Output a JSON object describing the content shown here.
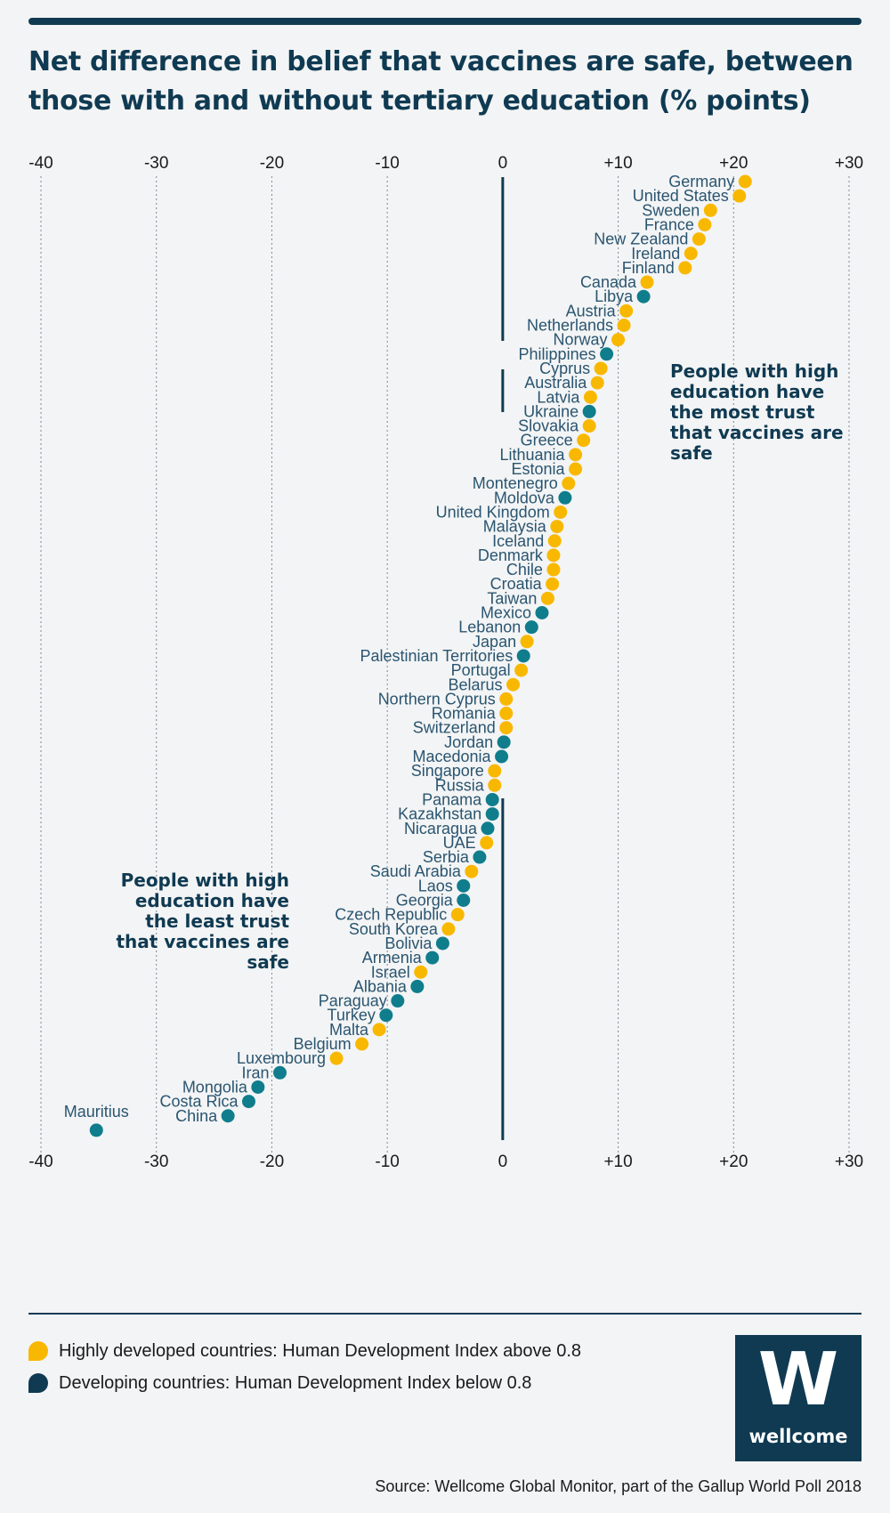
{
  "title": "Net difference in belief that vaccines are safe, between those with and without tertiary education (% points)",
  "colors": {
    "developed": "#f9b800",
    "developing": "#0f7d8c",
    "navy": "#0f3a52"
  },
  "chart_data": {
    "type": "scatter",
    "title": "Net difference in belief that vaccines are safe, between those with and without tertiary education (% points)",
    "xlim": [
      -40,
      30
    ],
    "ticks": [
      -40,
      -30,
      -20,
      -10,
      0,
      10,
      20,
      30
    ],
    "tick_labels": [
      "-40",
      "-30",
      "-20",
      "-10",
      "0",
      "+10",
      "+20",
      "+30"
    ],
    "grid": true,
    "legend": "bottom",
    "series": [
      {
        "name": "Highly developed countries: Human Development Index above 0.8",
        "group": "developed"
      },
      {
        "name": "Developing countries: Human Development Index below 0.8",
        "group": "developing"
      }
    ],
    "points": [
      {
        "country": "Germany",
        "value": 21,
        "group": "developed"
      },
      {
        "country": "United States",
        "value": 20.5,
        "group": "developed"
      },
      {
        "country": "Sweden",
        "value": 18,
        "group": "developed"
      },
      {
        "country": "France",
        "value": 17.5,
        "group": "developed"
      },
      {
        "country": "New Zealand",
        "value": 17,
        "group": "developed"
      },
      {
        "country": "Ireland",
        "value": 16.3,
        "group": "developed"
      },
      {
        "country": "Finland",
        "value": 15.8,
        "group": "developed"
      },
      {
        "country": "Canada",
        "value": 12.5,
        "group": "developed"
      },
      {
        "country": "Libya",
        "value": 12.2,
        "group": "developing"
      },
      {
        "country": "Austria",
        "value": 10.7,
        "group": "developed"
      },
      {
        "country": "Netherlands",
        "value": 10.5,
        "group": "developed"
      },
      {
        "country": "Norway",
        "value": 10,
        "group": "developed"
      },
      {
        "country": "Philippines",
        "value": 9,
        "group": "developing"
      },
      {
        "country": "Cyprus",
        "value": 8.5,
        "group": "developed"
      },
      {
        "country": "Australia",
        "value": 8.2,
        "group": "developed"
      },
      {
        "country": "Latvia",
        "value": 7.6,
        "group": "developed"
      },
      {
        "country": "Ukraine",
        "value": 7.5,
        "group": "developing"
      },
      {
        "country": "Slovakia",
        "value": 7.5,
        "group": "developed"
      },
      {
        "country": "Greece",
        "value": 7,
        "group": "developed"
      },
      {
        "country": "Lithuania",
        "value": 6.3,
        "group": "developed"
      },
      {
        "country": "Estonia",
        "value": 6.3,
        "group": "developed"
      },
      {
        "country": "Montenegro",
        "value": 5.7,
        "group": "developed"
      },
      {
        "country": "Moldova",
        "value": 5.4,
        "group": "developing"
      },
      {
        "country": "United Kingdom",
        "value": 5,
        "group": "developed"
      },
      {
        "country": "Malaysia",
        "value": 4.7,
        "group": "developed"
      },
      {
        "country": "Iceland",
        "value": 4.5,
        "group": "developed"
      },
      {
        "country": "Denmark",
        "value": 4.4,
        "group": "developed"
      },
      {
        "country": "Chile",
        "value": 4.4,
        "group": "developed"
      },
      {
        "country": "Croatia",
        "value": 4.3,
        "group": "developed"
      },
      {
        "country": "Taiwan",
        "value": 3.9,
        "group": "developed"
      },
      {
        "country": "Mexico",
        "value": 3.4,
        "group": "developing"
      },
      {
        "country": "Lebanon",
        "value": 2.5,
        "group": "developing"
      },
      {
        "country": "Japan",
        "value": 2.1,
        "group": "developed"
      },
      {
        "country": "Palestinian Territories",
        "value": 1.8,
        "group": "developing"
      },
      {
        "country": "Portugal",
        "value": 1.6,
        "group": "developed"
      },
      {
        "country": "Belarus",
        "value": 0.9,
        "group": "developed"
      },
      {
        "country": "Northern Cyprus",
        "value": 0.3,
        "group": "developed"
      },
      {
        "country": "Romania",
        "value": 0.3,
        "group": "developed"
      },
      {
        "country": "Switzerland",
        "value": 0.3,
        "group": "developed"
      },
      {
        "country": "Jordan",
        "value": 0.1,
        "group": "developing"
      },
      {
        "country": "Macedonia",
        "value": -0.1,
        "group": "developing"
      },
      {
        "country": "Singapore",
        "value": -0.7,
        "group": "developed"
      },
      {
        "country": "Russia",
        "value": -0.7,
        "group": "developed"
      },
      {
        "country": "Panama",
        "value": -0.9,
        "group": "developing"
      },
      {
        "country": "Kazakhstan",
        "value": -0.9,
        "group": "developing"
      },
      {
        "country": "Nicaragua",
        "value": -1.3,
        "group": "developing"
      },
      {
        "country": "UAE",
        "value": -1.4,
        "group": "developed"
      },
      {
        "country": "Serbia",
        "value": -2,
        "group": "developing"
      },
      {
        "country": "Saudi Arabia",
        "value": -2.7,
        "group": "developed"
      },
      {
        "country": "Laos",
        "value": -3.4,
        "group": "developing"
      },
      {
        "country": "Georgia",
        "value": -3.4,
        "group": "developing"
      },
      {
        "country": "Czech Republic",
        "value": -3.9,
        "group": "developed"
      },
      {
        "country": "South Korea",
        "value": -4.7,
        "group": "developed"
      },
      {
        "country": "Bolivia",
        "value": -5.2,
        "group": "developing"
      },
      {
        "country": "Armenia",
        "value": -6.1,
        "group": "developing"
      },
      {
        "country": "Israel",
        "value": -7.1,
        "group": "developed"
      },
      {
        "country": "Albania",
        "value": -7.4,
        "group": "developing"
      },
      {
        "country": "Paraguay",
        "value": -9.1,
        "group": "developing"
      },
      {
        "country": "Turkey",
        "value": -10.1,
        "group": "developing"
      },
      {
        "country": "Malta",
        "value": -10.7,
        "group": "developed"
      },
      {
        "country": "Belgium",
        "value": -12.2,
        "group": "developed"
      },
      {
        "country": "Luxembourg",
        "value": -14.4,
        "group": "developed"
      },
      {
        "country": "Iran",
        "value": -19.3,
        "group": "developing"
      },
      {
        "country": "Mongolia",
        "value": -21.2,
        "group": "developing"
      },
      {
        "country": "Costa Rica",
        "value": -22,
        "group": "developing"
      },
      {
        "country": "China",
        "value": -23.8,
        "group": "developing"
      },
      {
        "country": "Mauritius",
        "value": -35.2,
        "group": "developing"
      }
    ],
    "annotations": [
      {
        "text": [
          "People with high",
          "education have",
          "the most trust",
          "that vaccines are",
          "safe"
        ]
      },
      {
        "text": [
          "People with high",
          "education have",
          "the least trust",
          "that vaccines are",
          "safe"
        ]
      }
    ]
  },
  "legend": [
    {
      "label": "Highly developed countries: Human Development Index above 0.8",
      "group": "developed"
    },
    {
      "label": "Developing countries: Human Development Index below 0.8",
      "group": "developing"
    }
  ],
  "logo": {
    "letter": "W",
    "word": "wellcome"
  },
  "source": "Source: Wellcome Global Monitor, part of the Gallup World Poll 2018"
}
